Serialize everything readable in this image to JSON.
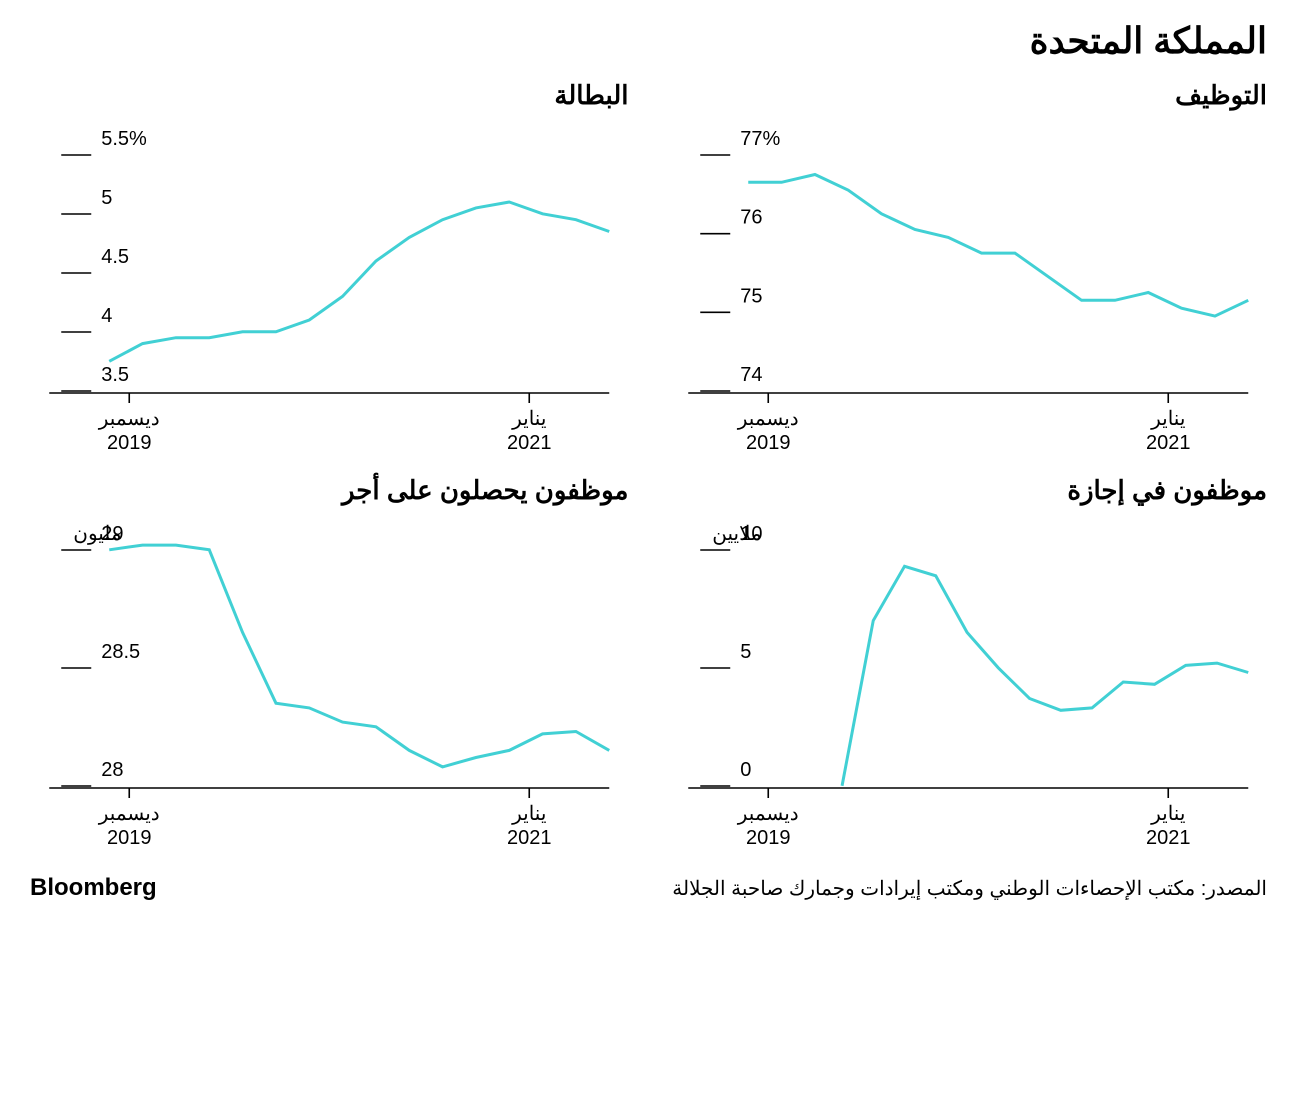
{
  "main_title": "المملكة المتحدة",
  "footer": {
    "source": "المصدر: مكتب الإحصاءات الوطني ومكتب إيرادات وجمارك صاحبة الجلالة",
    "brand": "Bloomberg"
  },
  "common": {
    "line_color": "#41d0d4",
    "text_color": "#000000",
    "background_color": "#ffffff",
    "line_width": 3,
    "x_axis": {
      "ticks": [
        {
          "pos": 0.04,
          "month": "ديسمبر",
          "year": "2019"
        },
        {
          "pos": 0.84,
          "month": "يناير",
          "year": "2021"
        }
      ]
    }
  },
  "panels": {
    "employment": {
      "title": "التوظيف",
      "unit": "%",
      "y_axis": {
        "min": 74,
        "max": 77,
        "ticks": [
          74,
          75,
          76,
          77
        ]
      },
      "data": [
        76.5,
        76.5,
        76.6,
        76.4,
        76.1,
        75.9,
        75.8,
        75.6,
        75.6,
        75.3,
        75.0,
        75.0,
        75.1,
        74.9,
        74.8,
        75.0
      ]
    },
    "unemployment": {
      "title": "البطالة",
      "unit": "%",
      "y_axis": {
        "min": 3.5,
        "max": 5.5,
        "ticks": [
          3.5,
          4.0,
          4.5,
          5.0,
          5.5
        ]
      },
      "data": [
        3.65,
        3.8,
        3.85,
        3.85,
        3.9,
        3.9,
        4.0,
        4.2,
        4.5,
        4.7,
        4.85,
        4.95,
        5.0,
        4.9,
        4.85,
        4.75
      ]
    },
    "furlough": {
      "title": "موظفون في إجازة",
      "unit": "ملايين",
      "y_axis": {
        "min": 0,
        "max": 10,
        "ticks": [
          0,
          5,
          10
        ]
      },
      "data": [
        null,
        null,
        null,
        -0.5,
        6.5,
        8.8,
        8.4,
        6.0,
        4.5,
        3.2,
        2.7,
        2.8,
        3.9,
        3.8,
        4.6,
        4.7,
        4.3
      ]
    },
    "payroll": {
      "title": "موظفون يحصلون على أجر",
      "unit": "مليون",
      "y_axis": {
        "min": 28.0,
        "max": 29.0,
        "ticks": [
          28.0,
          28.5,
          29.0
        ]
      },
      "data": [
        28.95,
        28.97,
        28.97,
        28.95,
        28.6,
        28.3,
        28.28,
        28.22,
        28.2,
        28.1,
        28.03,
        28.07,
        28.1,
        28.17,
        28.18,
        28.1
      ]
    }
  }
}
